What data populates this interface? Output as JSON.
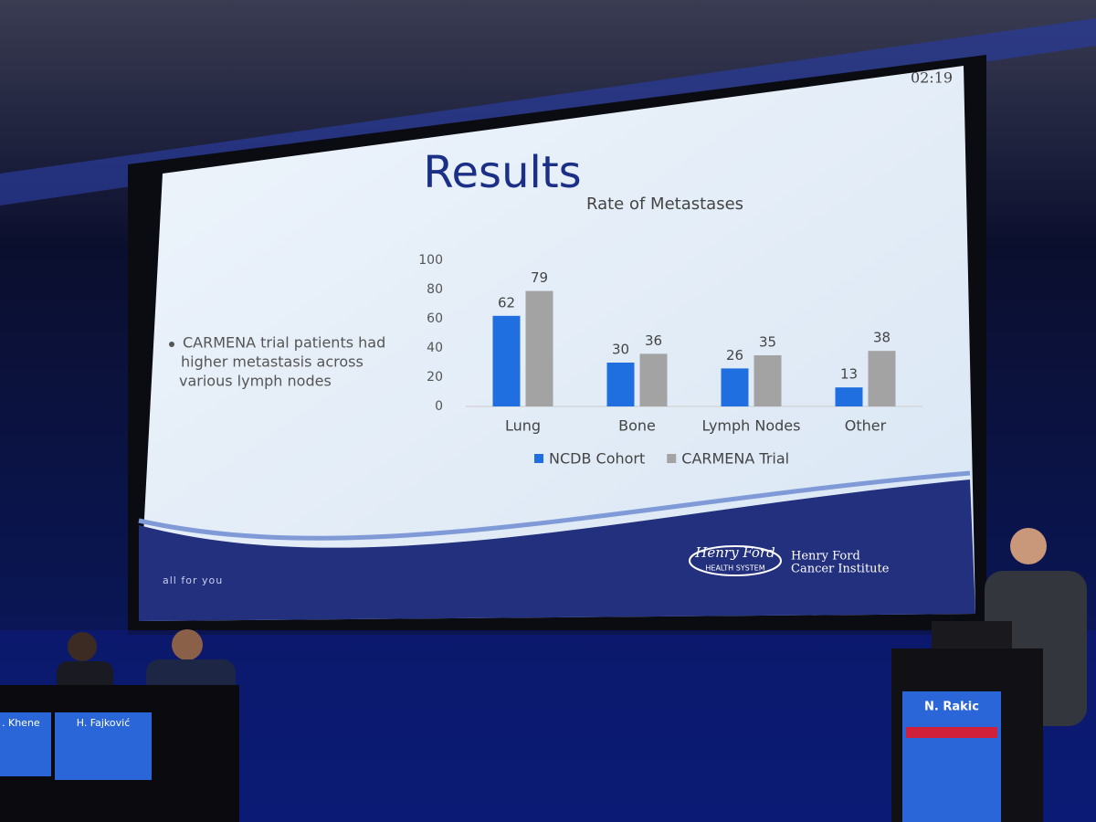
{
  "chart_data": {
    "type": "bar",
    "title": "Rate of Metastases",
    "categories": [
      "Lung",
      "Bone",
      "Lymph Nodes",
      "Other"
    ],
    "series": [
      {
        "name": "NCDB Cohort",
        "color": "#1f6fe0",
        "values": [
          62,
          30,
          26,
          13
        ]
      },
      {
        "name": "CARMENA Trial",
        "color": "#a3a3a3",
        "values": [
          79,
          36,
          35,
          38
        ]
      }
    ],
    "ylim": [
      0,
      100
    ],
    "yticks": [
      0,
      20,
      40,
      60,
      80,
      100
    ],
    "grid": false,
    "legend": "bottom"
  },
  "slide": {
    "title": "Results",
    "timer": "02:19",
    "bullet": [
      "CARMENA trial patients had",
      "higher metastasis across",
      "various lymph nodes"
    ],
    "footer": "all for you",
    "logo": [
      "Henry Ford",
      "HEALTH SYSTEM"
    ],
    "institute": [
      "Henry Ford",
      "Cancer Institute"
    ]
  },
  "stage": {
    "speaker": "N. Rakic",
    "panel": [
      ". Khene",
      "H. Fajković"
    ]
  }
}
